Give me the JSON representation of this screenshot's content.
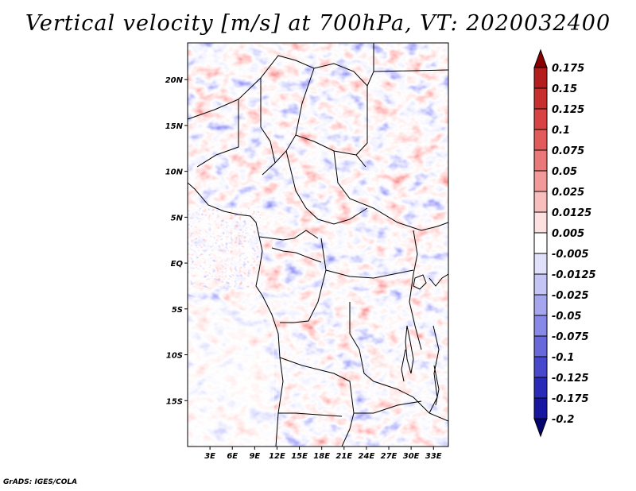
{
  "title": "Vertical velocity [m/s] at 700hPa, VT: 2020032400",
  "footer": "GrADS: IGES/COLA",
  "chart_data": {
    "type": "heatmap",
    "title": "Vertical velocity [m/s] at 700hPa, VT: 2020032400",
    "variable": "Vertical velocity",
    "units": "m/s",
    "level": "700hPa",
    "valid_time": "2020032400",
    "lon_range": [
      0,
      35
    ],
    "lat_range": [
      -20,
      24
    ],
    "x_ticks": [
      "3E",
      "6E",
      "9E",
      "12E",
      "15E",
      "18E",
      "21E",
      "24E",
      "27E",
      "30E",
      "33E"
    ],
    "y_ticks": [
      "20N",
      "15N",
      "10N",
      "5N",
      "EQ",
      "5S",
      "10S",
      "15S"
    ],
    "colorbar": {
      "labels": [
        "0.175",
        "0.15",
        "0.125",
        "0.1",
        "0.075",
        "0.05",
        "0.025",
        "0.0125",
        "0.005",
        "-0.005",
        "-0.0125",
        "-0.025",
        "-0.05",
        "-0.075",
        "-0.1",
        "-0.125",
        "-0.175",
        "-0.2"
      ],
      "colors": [
        "#9e0e0e",
        "#b51c1c",
        "#c92e2e",
        "#d94242",
        "#e35a5a",
        "#ea7878",
        "#f29a9a",
        "#f8bdbd",
        "#fde0e0",
        "#ffffff",
        "#e0e0fb",
        "#c4c4f5",
        "#a6a6ef",
        "#8888e6",
        "#6868da",
        "#4848cc",
        "#2a2ab8",
        "#1616a0",
        "#0a0a80"
      ],
      "top_extension_color": "#8a0000",
      "bottom_extension_color": "#050570"
    }
  }
}
